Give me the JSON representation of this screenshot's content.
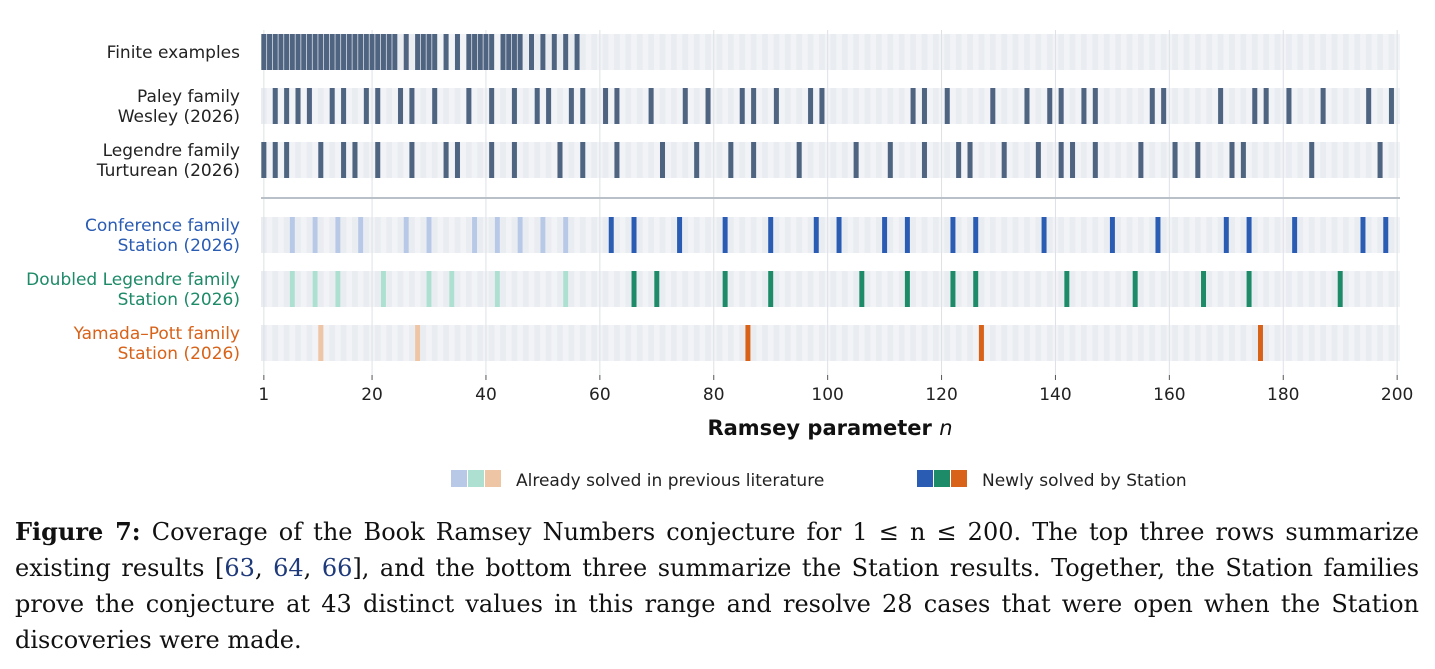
{
  "chart_data": {
    "type": "strip",
    "xlabel": "Ramsey parameter",
    "xlabel_var": "n",
    "x_range": [
      1,
      200
    ],
    "x_ticks": [
      1,
      20,
      40,
      60,
      80,
      100,
      120,
      140,
      160,
      180,
      200
    ],
    "rows": [
      {
        "label_lines": [
          "Finite examples"
        ],
        "group": "existing",
        "color": "#4f6481",
        "values": [
          1,
          2,
          3,
          4,
          5,
          6,
          7,
          8,
          9,
          10,
          11,
          12,
          13,
          14,
          15,
          16,
          17,
          18,
          19,
          20,
          21,
          22,
          23,
          24,
          26,
          28,
          29,
          30,
          31,
          33,
          35,
          37,
          38,
          39,
          40,
          41,
          43,
          44,
          45,
          46,
          48,
          50,
          52,
          54,
          56
        ]
      },
      {
        "label_lines": [
          "Paley family",
          "Wesley (2026)"
        ],
        "group": "existing",
        "color": "#4f6481",
        "values": [
          3,
          5,
          7,
          9,
          13,
          15,
          19,
          21,
          25,
          27,
          31,
          37,
          41,
          45,
          49,
          51,
          55,
          57,
          61,
          63,
          69,
          75,
          79,
          85,
          87,
          91,
          97,
          99,
          115,
          117,
          121,
          129,
          135,
          139,
          141,
          145,
          147,
          157,
          159,
          169,
          175,
          177,
          181,
          187,
          195,
          199
        ]
      },
      {
        "label_lines": [
          "Legendre family",
          "Turturean (2026)"
        ],
        "group": "existing",
        "color": "#4f6481",
        "values": [
          1,
          3,
          5,
          11,
          15,
          17,
          21,
          27,
          33,
          35,
          41,
          45,
          53,
          57,
          63,
          71,
          77,
          83,
          87,
          95,
          105,
          111,
          117,
          123,
          125,
          131,
          137,
          141,
          143,
          147,
          155,
          161,
          165,
          171,
          173,
          185,
          197
        ]
      },
      {
        "label_lines": [
          "Conference family",
          "Station (2026)"
        ],
        "group": "station",
        "color": "#2a5cb4",
        "light_color": "#b7c9e6",
        "label_color": "#2a5cb4",
        "previous": [
          6,
          10,
          14,
          18,
          26,
          30,
          38,
          42,
          46,
          50,
          54
        ],
        "new": [
          62,
          66,
          74,
          82,
          90,
          98,
          102,
          110,
          114,
          122,
          126,
          138,
          150,
          158,
          170,
          174,
          182,
          194,
          198
        ]
      },
      {
        "label_lines": [
          "Doubled Legendre family",
          "Station (2026)"
        ],
        "group": "station",
        "color": "#1d8a68",
        "light_color": "#ade0d0",
        "label_color": "#1d8a68",
        "previous": [
          6,
          10,
          14,
          22,
          30,
          34,
          42,
          54
        ],
        "new": [
          66,
          70,
          82,
          90,
          106,
          114,
          122,
          126,
          142,
          154,
          166,
          174,
          190
        ]
      },
      {
        "label_lines": [
          "Yamada–Pott family",
          "Station (2026)"
        ],
        "group": "station",
        "color": "#d86218",
        "light_color": "#efc6a5",
        "label_color": "#d86218",
        "previous": [
          11,
          28
        ],
        "new": [
          86,
          127,
          176
        ]
      }
    ],
    "legend": [
      {
        "label": "Already solved in previous literature",
        "colors": [
          "#b7c9e6",
          "#ade0d0",
          "#efc6a5"
        ]
      },
      {
        "label": "Newly solved by Station",
        "colors": [
          "#2a5cb4",
          "#1d8a68",
          "#d86218"
        ]
      }
    ],
    "grid": true
  },
  "caption": {
    "figure_label": "Figure 7:",
    "text_a": " Coverage of the Book Ramsey Numbers conjecture for 1 ≤ n ≤ 200. The top three rows summarize existing results [",
    "ref1": "63",
    "sep1": ", ",
    "ref2": "64",
    "sep2": ", ",
    "ref3": "66",
    "text_b": "], and the bottom three summarize the Station results. Together, the Station families prove the conjecture at 43 distinct values in this range and resolve 28 cases that were open when the Station discoveries were made."
  }
}
